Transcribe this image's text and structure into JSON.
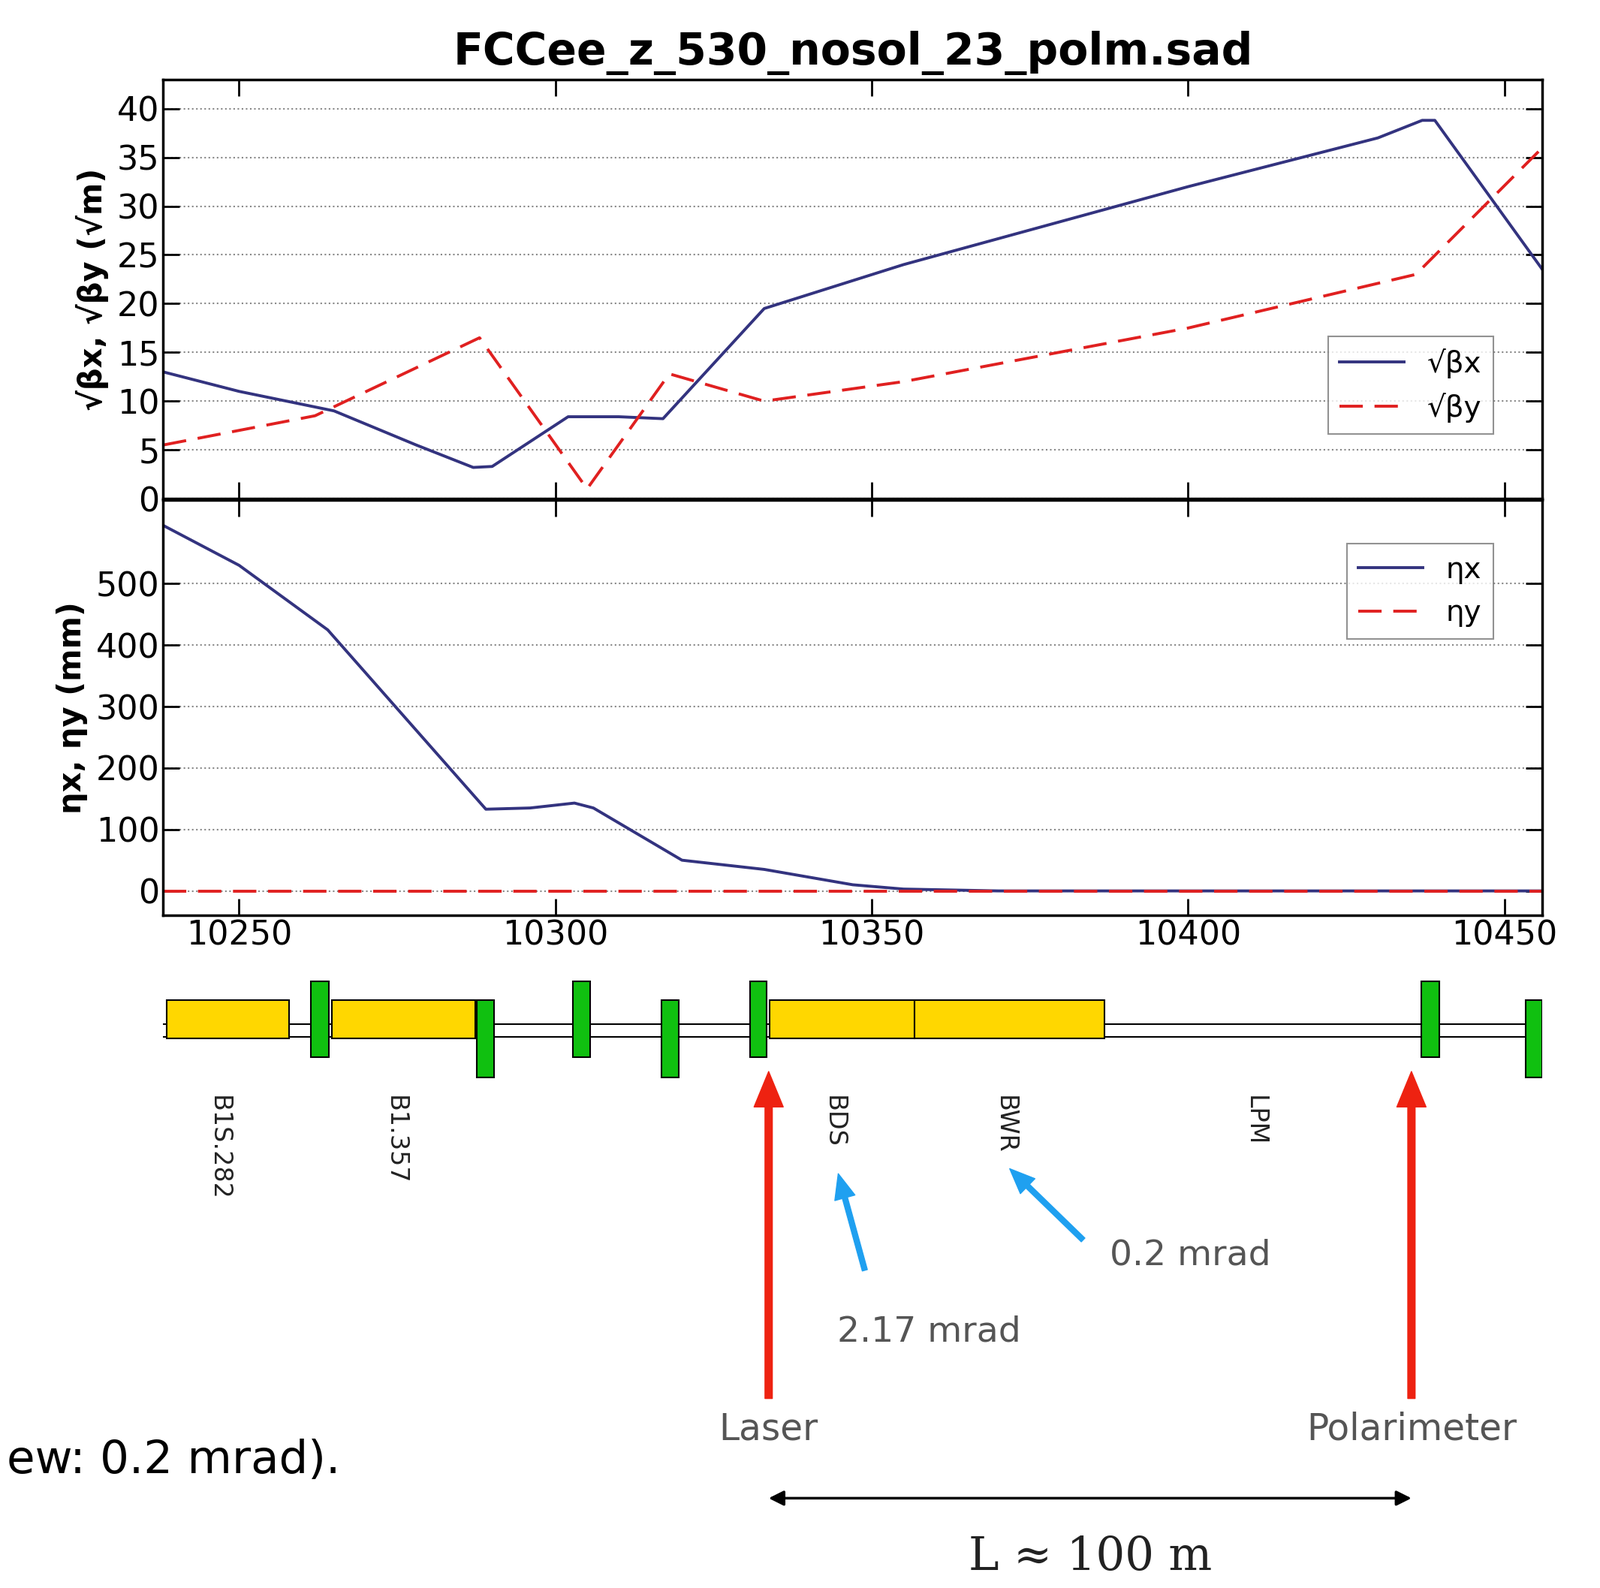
{
  "chart_data": [
    {
      "type": "line",
      "title": "FCCee_z_530_nosol_23_polm.sad",
      "ylabel": "√βx, √βy (√m)",
      "xlim": [
        10238,
        10456
      ],
      "ylim": [
        0,
        43
      ],
      "xticks": [
        10250,
        10300,
        10350,
        10400,
        10450
      ],
      "yticks": [
        0,
        5,
        10,
        15,
        20,
        25,
        30,
        35,
        40
      ],
      "grid": "y",
      "legend": "center right",
      "tick_labels": "y",
      "series": [
        {
          "name": "√βx",
          "color": "#33337f",
          "line_style": "solid",
          "x": [
            10238,
            10250,
            10265,
            10278,
            10287,
            10290,
            10302,
            10310,
            10317,
            10333,
            10355,
            10400,
            10430,
            10437,
            10439,
            10456
          ],
          "values": [
            13,
            11,
            9,
            5.5,
            3.2,
            3.3,
            8.4,
            8.4,
            8.2,
            19.5,
            24,
            32,
            37,
            38.8,
            38.8,
            23.5
          ]
        },
        {
          "name": "√βy",
          "color": "#e02020",
          "line_style": "dashed",
          "x": [
            10238,
            10250,
            10262,
            10288,
            10305,
            10318,
            10333,
            10355,
            10400,
            10436,
            10456
          ],
          "values": [
            5.5,
            7,
            8.5,
            16.5,
            1,
            12.8,
            10,
            12,
            17.5,
            23,
            36
          ]
        }
      ]
    },
    {
      "type": "line",
      "ylabel": "ηx, ηy (mm)",
      "xlim": [
        10238,
        10456
      ],
      "ylim": [
        -40,
        636
      ],
      "xticks": [
        10250,
        10300,
        10350,
        10400,
        10450
      ],
      "yticks": [
        0,
        100,
        200,
        300,
        400,
        500
      ],
      "grid": "y",
      "legend": "upper right",
      "series": [
        {
          "name": "ηx",
          "color": "#33337f",
          "line_style": "solid",
          "x": [
            10238,
            10250,
            10264,
            10289,
            10296,
            10303,
            10306,
            10320,
            10333,
            10347,
            10355,
            10370,
            10456
          ],
          "values": [
            595,
            530,
            425,
            133,
            135,
            143,
            135,
            50,
            35,
            10,
            3,
            0,
            0
          ]
        },
        {
          "name": "ηy",
          "color": "#e02020",
          "line_style": "dashed",
          "x": [
            10238,
            10456
          ],
          "values": [
            0,
            0
          ]
        }
      ]
    }
  ],
  "lattice": {
    "elements": [
      {
        "kind": "dipole",
        "start": 10238.5,
        "end": 10257.9
      },
      {
        "kind": "quad_up",
        "start": 10261.3,
        "end": 10264.2
      },
      {
        "kind": "dipole",
        "start": 10264.7,
        "end": 10287.3
      },
      {
        "kind": "quad_down",
        "start": 10287.6,
        "end": 10290.3
      },
      {
        "kind": "quad_up",
        "start": 10302.7,
        "end": 10305.5
      },
      {
        "kind": "quad_down",
        "start": 10316.8,
        "end": 10319.5
      },
      {
        "kind": "quad_up",
        "start": 10330.8,
        "end": 10333.4
      },
      {
        "kind": "dipole",
        "start": 10333.9,
        "end": 10356.8
      },
      {
        "kind": "dipole",
        "start": 10356.8,
        "end": 10386.8
      },
      {
        "kind": "quad_up",
        "start": 10436.9,
        "end": 10439.7
      },
      {
        "kind": "quad_down",
        "start": 10453.4,
        "end": 10456
      }
    ],
    "labels": [
      {
        "text": "B1S.282",
        "s": 10246.8
      },
      {
        "text": "B1.357",
        "s": 10274.7
      },
      {
        "text": "BDS",
        "s": 10344
      },
      {
        "text": "BWR",
        "s": 10371
      },
      {
        "text": "LPM",
        "s": 10410.5
      }
    ]
  },
  "markers": [
    {
      "text": "Laser",
      "s": 10333.7
    },
    {
      "text": "Polarimeter",
      "s": 10435.3
    }
  ],
  "angles": [
    {
      "text": "2.17 mrad",
      "target": "BDS"
    },
    {
      "text": "0.2 mrad",
      "target": "BWR"
    }
  ],
  "distance": {
    "text": "L ≈ 100 m",
    "from": "Laser",
    "to": "Polarimeter"
  },
  "note": "ew: 0.2 mrad)."
}
